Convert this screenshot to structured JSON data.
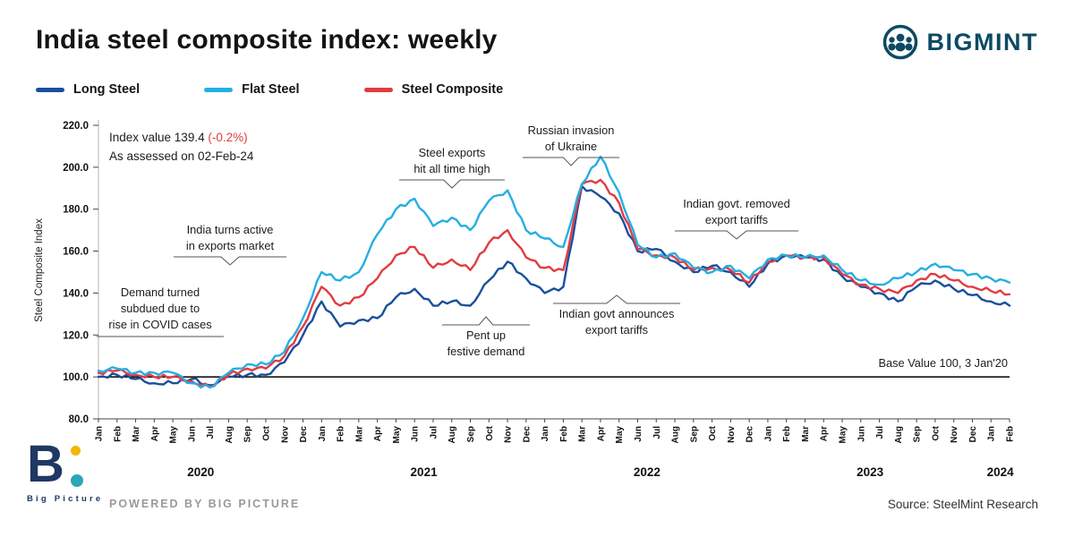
{
  "header": {
    "title": "India steel composite index: weekly",
    "brand": "BIGMINT",
    "brand_icon": "people-circle-icon"
  },
  "colors": {
    "brand": "#0D4A63",
    "red": "#E23B41",
    "leader": "#555555",
    "bp_navy": "#1F3864",
    "bp_teal": "#2AA7B8",
    "bp_yellow": "#F2B705",
    "base_line": "#000000"
  },
  "annotations": {
    "index_note": {
      "line1_prefix": "Index value 139.4 ",
      "delta": "(-0.2%)",
      "line2": "As assessed on 02-Feb-24"
    },
    "covid": {
      "line1": "Demand turned",
      "line2": "subdued due to",
      "line3": "rise in COVID cases"
    },
    "exports_market": {
      "line1": "India turns active",
      "line2": "in exports market"
    },
    "exports_high": {
      "line1": "Steel exports",
      "line2": "hit all time high"
    },
    "pent_up": {
      "line1": "Pent up",
      "line2": "festive demand"
    },
    "russia": {
      "line1": "Russian invasion",
      "line2": "of Ukraine"
    },
    "tariffs_announced": {
      "line1": "Indian govt announces",
      "line2": "export tariffs"
    },
    "tariffs_removed": {
      "line1": "Indian govt. removed",
      "line2": "export tariffs"
    },
    "base_value": "Base Value 100, 3 Jan'20"
  },
  "footer": {
    "logo_b": "B",
    "logo_text": "Big Picture",
    "powered_by": "POWERED BY BIG PICTURE",
    "source": "Source: SteelMint Research"
  },
  "chart_data": {
    "type": "line",
    "title": "India steel composite index: weekly",
    "xlabel": "",
    "ylabel": "Steel Composite Index",
    "ylim": [
      80,
      220
    ],
    "yticks": [
      80,
      100,
      120,
      140,
      160,
      180,
      200,
      220
    ],
    "grid": false,
    "legend_position": "top-left",
    "base_line": {
      "value": 100,
      "label": "Base Value 100, 3 Jan'20"
    },
    "x_months": [
      "Jan",
      "Feb",
      "Mar",
      "Apr",
      "May",
      "Jun",
      "Jul",
      "Aug",
      "Sep",
      "Oct",
      "Nov",
      "Dec",
      "Jan",
      "Feb",
      "Mar",
      "Apr",
      "May",
      "Jun",
      "Jul",
      "Aug",
      "Sep",
      "Oct",
      "Nov",
      "Dec",
      "Jan",
      "Feb",
      "Mar",
      "Apr",
      "May",
      "Jun",
      "Jul",
      "Aug",
      "Sep",
      "Oct",
      "Nov",
      "Dec",
      "Jan",
      "Feb",
      "Mar",
      "Apr",
      "May",
      "Jun",
      "Jul",
      "Aug",
      "Sep",
      "Oct",
      "Nov",
      "Dec",
      "Jan",
      "Feb"
    ],
    "years": [
      {
        "label": "2020",
        "center_index": 5.5
      },
      {
        "label": "2021",
        "center_index": 17.5
      },
      {
        "label": "2022",
        "center_index": 29.5
      },
      {
        "label": "2023",
        "center_index": 41.5
      },
      {
        "label": "2024",
        "center_index": 48.5
      }
    ],
    "series": [
      {
        "name": "Long Steel",
        "color": "#1A4F9C",
        "values": [
          100,
          101,
          99,
          97,
          97,
          99,
          96,
          100,
          101,
          101,
          107,
          120,
          136,
          124,
          127,
          128,
          138,
          142,
          134,
          136,
          134,
          146,
          155,
          147,
          140,
          143,
          191,
          186,
          178,
          160,
          161,
          155,
          150,
          153,
          150,
          143,
          154,
          158,
          157,
          156,
          148,
          143,
          140,
          136,
          143,
          146,
          142,
          139,
          136,
          134
        ]
      },
      {
        "name": "Flat Steel",
        "color": "#25AEE4",
        "values": [
          103,
          104,
          102,
          102,
          102,
          97,
          95,
          102,
          106,
          106,
          112,
          128,
          150,
          146,
          150,
          168,
          180,
          185,
          172,
          176,
          170,
          184,
          189,
          170,
          166,
          162,
          192,
          205,
          188,
          163,
          157,
          159,
          152,
          150,
          153,
          147,
          156,
          158,
          157,
          158,
          151,
          146,
          144,
          147,
          150,
          154,
          151,
          149,
          147,
          145
        ]
      },
      {
        "name": "Steel Composite",
        "color": "#E23B41",
        "values": [
          102,
          103,
          101,
          100,
          100,
          98,
          95,
          101,
          104,
          104,
          110,
          124,
          143,
          134,
          138,
          147,
          158,
          162,
          152,
          156,
          151,
          164,
          170,
          157,
          152,
          151,
          192,
          194,
          183,
          161,
          158,
          157,
          151,
          152,
          151,
          145,
          155,
          158,
          157,
          157,
          149,
          144,
          142,
          140,
          146,
          149,
          146,
          143,
          141,
          139.4
        ]
      }
    ]
  }
}
